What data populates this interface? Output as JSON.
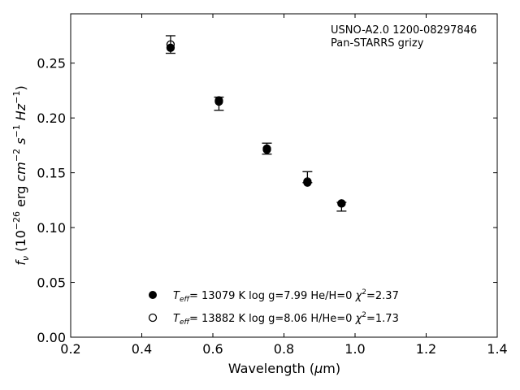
{
  "chart_data": {
    "type": "scatter",
    "xlabel_main": "Wavelength (",
    "xlabel_symbol": "μ",
    "xlabel_unit": "m)",
    "ylabel_f": "f",
    "ylabel_nu": "ν",
    "ylabel_open": " (10",
    "ylabel_exp1": "−26",
    "ylabel_erg": " erg ",
    "ylabel_cm": "cm",
    "ylabel_exp2": "−2",
    "ylabel_s": " s",
    "ylabel_exp3": "−1",
    "ylabel_hz": " Hz",
    "ylabel_exp4": "−1",
    "ylabel_close": ")",
    "xlim": [
      0.2,
      1.4
    ],
    "ylim": [
      0.0,
      0.295
    ],
    "xticks": [
      0.2,
      0.4,
      0.6,
      0.8,
      1.0,
      1.2,
      1.4
    ],
    "xtick_labels": [
      "0.2",
      "0.4",
      "0.6",
      "0.8",
      "1.0",
      "1.2",
      "1.4"
    ],
    "yticks": [
      0.0,
      0.05,
      0.1,
      0.15,
      0.2,
      0.25
    ],
    "ytick_labels": [
      "0.00",
      "0.05",
      "0.10",
      "0.15",
      "0.20",
      "0.25"
    ],
    "annotation": [
      "USNO-A2.0 1200-08297846",
      "Pan-STARRS grizy"
    ],
    "observed": {
      "x": [
        0.481,
        0.617,
        0.752,
        0.866,
        0.962
      ],
      "y": [
        0.267,
        0.213,
        0.172,
        0.146,
        0.119
      ],
      "yerr": [
        0.008,
        0.006,
        0.005,
        0.005,
        0.004
      ]
    },
    "series": [
      {
        "marker": "filled",
        "x": [
          0.481,
          0.617,
          0.752,
          0.866,
          0.962
        ],
        "y": [
          0.264,
          0.216,
          0.172,
          0.141,
          0.122
        ],
        "legend": {
          "teff_sym": "T",
          "teff_sub": "eff",
          "rest": "= 13079 K  log g=7.99  He/H=0  ",
          "chi": "χ",
          "chi_exp": "2",
          "chi_val": "=2.37"
        }
      },
      {
        "marker": "open",
        "x": [
          0.481,
          0.617,
          0.752,
          0.866,
          0.962
        ],
        "y": [
          0.267,
          0.215,
          0.171,
          0.142,
          0.122
        ],
        "legend": {
          "teff_sym": "T",
          "teff_sub": "eff",
          "rest": "= 13882 K  log g=8.06  H/He=0  ",
          "chi": "χ",
          "chi_exp": "2",
          "chi_val": "=1.73"
        }
      }
    ],
    "legend_position": "lower-center",
    "grid": false
  }
}
